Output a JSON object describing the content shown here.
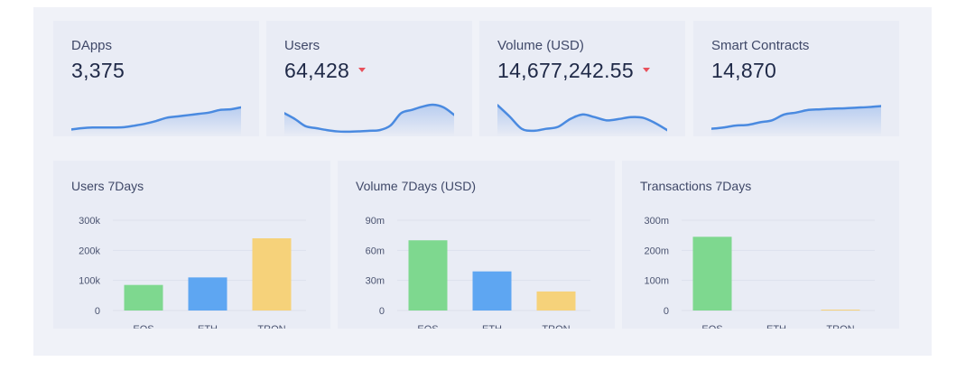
{
  "stats": [
    {
      "label": "DApps",
      "value": "3,375",
      "trend": "none",
      "spark": [
        0.1,
        0.14,
        0.16,
        0.16,
        0.16,
        0.17,
        0.22,
        0.28,
        0.36,
        0.46,
        0.5,
        0.54,
        0.58,
        0.62,
        0.7,
        0.72,
        0.78
      ]
    },
    {
      "label": "Users",
      "value": "64,428",
      "trend": "down",
      "spark": [
        0.6,
        0.42,
        0.2,
        0.14,
        0.08,
        0.04,
        0.03,
        0.04,
        0.06,
        0.08,
        0.22,
        0.6,
        0.7,
        0.8,
        0.86,
        0.78,
        0.55
      ]
    },
    {
      "label": "Volume (USD)",
      "value": "14,677,242.55",
      "trend": "down",
      "spark": [
        0.85,
        0.5,
        0.12,
        0.06,
        0.12,
        0.18,
        0.42,
        0.56,
        0.48,
        0.38,
        0.42,
        0.48,
        0.46,
        0.3,
        0.08
      ]
    },
    {
      "label": "Smart Contracts",
      "value": "14,870",
      "trend": "none",
      "spark": [
        0.12,
        0.16,
        0.22,
        0.24,
        0.32,
        0.38,
        0.56,
        0.62,
        0.7,
        0.72,
        0.74,
        0.75,
        0.77,
        0.79,
        0.82
      ]
    }
  ],
  "colors": {
    "line": "#4a8ae0",
    "fill_top": "#b8cdf0",
    "fill_bottom": "#e9ecf5",
    "caret": "#e8505b",
    "eos": "#7ed88f",
    "eth": "#5ea6f2",
    "tron": "#f6d27a"
  },
  "chart_data": [
    {
      "type": "bar",
      "title": "Users 7Days",
      "categories": [
        "EOS",
        "ETH",
        "TRON"
      ],
      "values": [
        85000,
        110000,
        240000
      ],
      "ylim": [
        0,
        300000
      ],
      "yticks": [
        0,
        100000,
        200000,
        300000
      ],
      "ytick_labels": [
        "0",
        "100k",
        "200k",
        "300k"
      ],
      "grid": true
    },
    {
      "type": "bar",
      "title": "Volume 7Days (USD)",
      "categories": [
        "EOS",
        "ETH",
        "TRON"
      ],
      "values": [
        70000000,
        39000000,
        19000000
      ],
      "ylim": [
        0,
        90000000
      ],
      "yticks": [
        0,
        30000000,
        60000000,
        90000000
      ],
      "ytick_labels": [
        "0",
        "30m",
        "60m",
        "90m"
      ],
      "grid": true
    },
    {
      "type": "bar",
      "title": "Transactions 7Days",
      "categories": [
        "EOS",
        "ETH",
        "TRON"
      ],
      "values": [
        245000000,
        0,
        3000000
      ],
      "ylim": [
        0,
        300000000
      ],
      "yticks": [
        0,
        100000000,
        200000000,
        300000000
      ],
      "ytick_labels": [
        "0",
        "100m",
        "200m",
        "300m"
      ],
      "grid": true
    }
  ]
}
